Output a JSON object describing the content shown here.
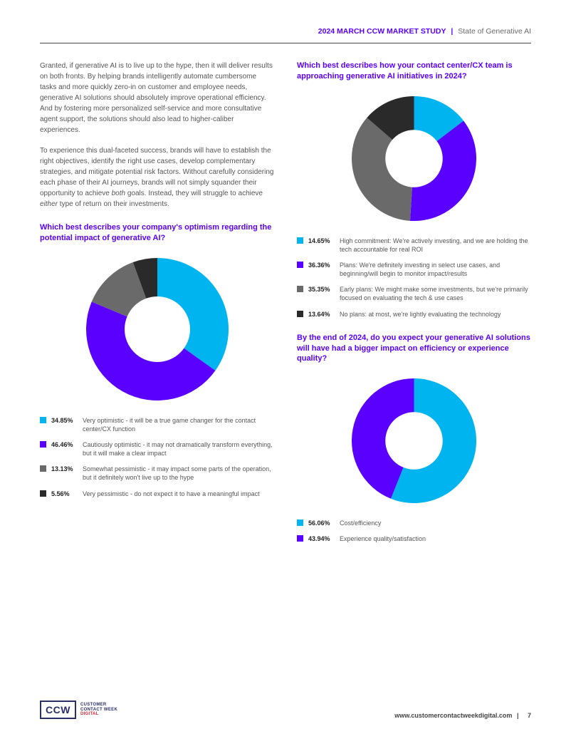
{
  "header": {
    "prefix": "2024 MARCH CCW MARKET STUDY",
    "separator": "|",
    "suffix": "State of Generative AI"
  },
  "body": {
    "para1": "Granted, if generative AI is to live up to the hype, then it will deliver results on both fronts. By helping brands intelligently automate cumbersome tasks and more quickly zero-in on customer and employee needs, generative AI solutions should absolutely improve operational efficiency. And by fostering more personalized self-service and more consultative agent support, the solutions should also lead to higher-caliber experiences.",
    "para2_a": "To experience this dual-faceted success, brands will have to establish the right objectives, identify the right use cases, develop complementary strategies, and mitigate potential risk factors. Without carefully considering each phase of their AI journeys, brands will not simply squander their opportunity to achieve ",
    "para2_em1": "both",
    "para2_b": " goals. Instead, they will struggle to achieve ",
    "para2_em2": "either",
    "para2_c": " type of return on their investments."
  },
  "chart1": {
    "type": "donut",
    "title": "Which best describes your company's optimism regarding the potential impact of generative AI?",
    "size": 200,
    "inner_ratio": 0.46,
    "background_color": "#ffffff",
    "start_angle": -90,
    "slices": [
      {
        "value": 34.85,
        "color": "#00b4f0",
        "pct": "34.85%",
        "label": "Very optimistic - it will be a true game changer for the contact center/CX function"
      },
      {
        "value": 46.46,
        "color": "#5a00ff",
        "pct": "46.46%",
        "label": "Cautiously optimistic - it may not dramatically transform everything, but it will make a clear impact"
      },
      {
        "value": 13.13,
        "color": "#6a6a6a",
        "pct": "13.13%",
        "label": "Somewhat pessimistic - it may impact some parts of the operation, but it definitely won't live up to the hype"
      },
      {
        "value": 5.56,
        "color": "#2a2a2a",
        "pct": "5.56%",
        "label": "Very pessimistic - do not expect it to have a meaningful impact"
      }
    ]
  },
  "chart2": {
    "type": "donut",
    "title": "Which best describes how your contact center/CX team is approaching generative AI initiatives in 2024?",
    "size": 175,
    "inner_ratio": 0.46,
    "background_color": "#ffffff",
    "start_angle": -90,
    "slices": [
      {
        "value": 14.65,
        "color": "#00b4f0",
        "pct": "14.65%",
        "label": "High commitment: We're actively investing, and we are holding the tech accountable for real ROI"
      },
      {
        "value": 36.36,
        "color": "#5a00ff",
        "pct": "36.36%",
        "label": "Plans: We're definitely investing in select use cases, and beginning/will begin to monitor impact/results"
      },
      {
        "value": 35.35,
        "color": "#6a6a6a",
        "pct": "35.35%",
        "label": "Early plans: We might make some investments, but we're primarily focused on evaluating the tech & use cases"
      },
      {
        "value": 13.64,
        "color": "#2a2a2a",
        "pct": "13.64%",
        "label": "No plans: at most, we're lightly evaluating the technology"
      }
    ]
  },
  "chart3": {
    "type": "donut",
    "title": "By the end of 2024, do you expect your generative AI solutions will have had a bigger impact on efficiency or experience quality?",
    "size": 175,
    "inner_ratio": 0.46,
    "background_color": "#ffffff",
    "start_angle": -90,
    "slices": [
      {
        "value": 56.06,
        "color": "#00b4f0",
        "pct": "56.06%",
        "label": "Cost/efficiency"
      },
      {
        "value": 43.94,
        "color": "#5a00ff",
        "pct": "43.94%",
        "label": "Experience quality/satisfaction"
      }
    ]
  },
  "footer": {
    "logo_mark": "CCW",
    "logo_line1": "CUSTOMER",
    "logo_line2": "CONTACT WEEK",
    "logo_line3": "DIGITAL",
    "url": "www.customercontactweekdigital.com",
    "separator": "|",
    "page_number": "7"
  }
}
